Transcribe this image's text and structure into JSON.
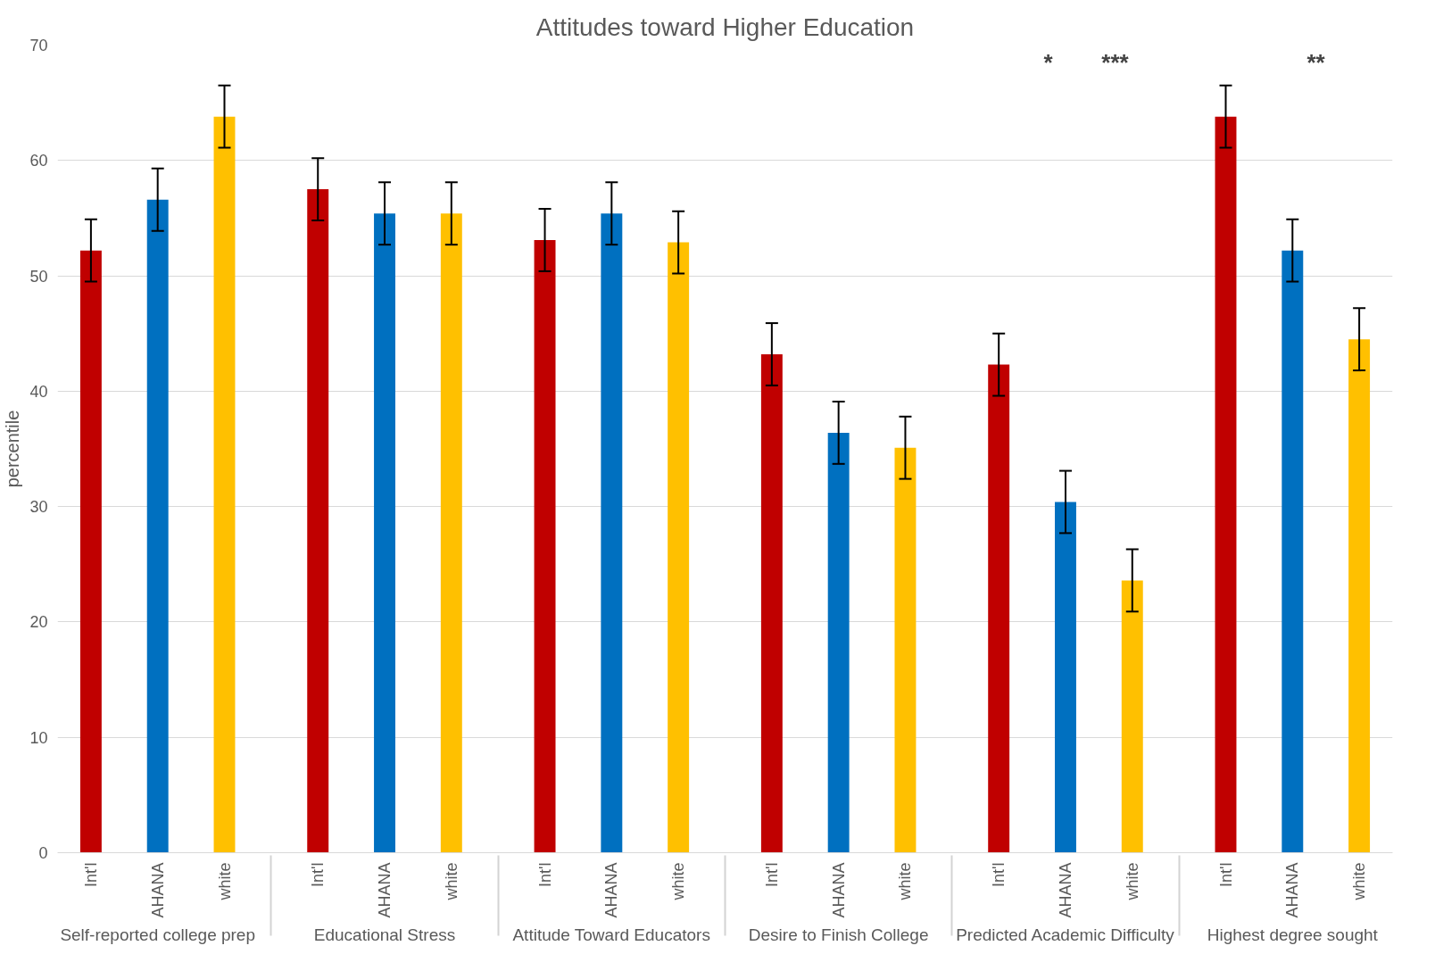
{
  "chart_data": {
    "type": "bar",
    "title": "Attitudes toward Higher Education",
    "ylabel": "percentile",
    "categories": [
      "Self-reported college prep",
      "Educational Stress",
      "Attitude Toward Educators",
      "Desire to Finish College",
      "Predicted Academic Difficulty",
      "Highest degree sought"
    ],
    "series": [
      {
        "name": "Int'l",
        "color": "#c00000",
        "values": [
          52.2,
          57.5,
          53.1,
          43.2,
          42.3,
          63.8
        ],
        "errors": [
          2.7,
          2.7,
          2.7,
          2.7,
          2.7,
          2.7
        ]
      },
      {
        "name": "AHANA",
        "color": "#0070c0",
        "values": [
          56.6,
          55.4,
          55.4,
          36.4,
          30.4,
          52.2
        ],
        "errors": [
          2.7,
          2.7,
          2.7,
          2.7,
          2.7,
          2.7
        ]
      },
      {
        "name": "white",
        "color": "#ffc000",
        "values": [
          63.8,
          55.4,
          52.9,
          35.1,
          23.6,
          44.5
        ],
        "errors": [
          2.7,
          2.7,
          2.7,
          2.7,
          2.7,
          2.7
        ]
      }
    ],
    "ylim": [
      0,
      70
    ],
    "yticks": [
      0,
      10,
      20,
      30,
      40,
      50,
      60,
      70
    ],
    "grid": "y",
    "legend": false,
    "annotations": [
      "*",
      "***",
      "**"
    ]
  }
}
